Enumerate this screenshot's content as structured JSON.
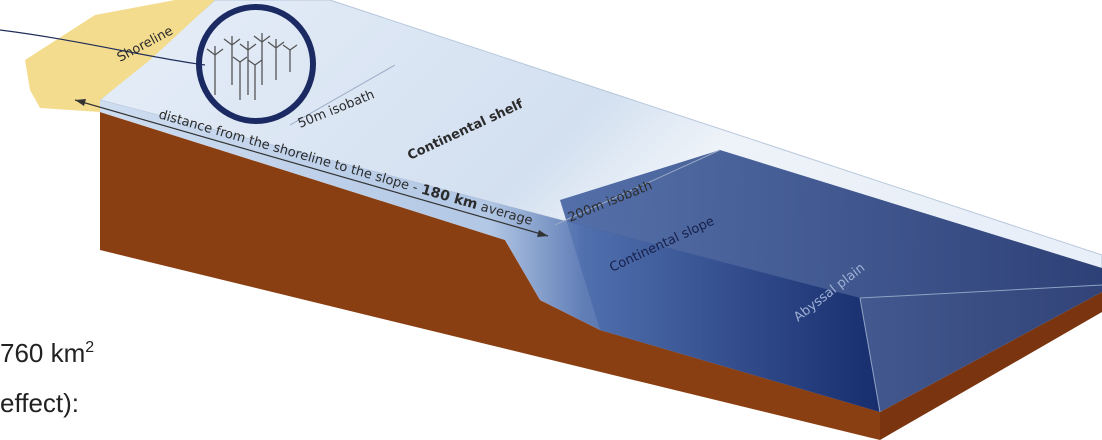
{
  "labels": {
    "shoreline": "Shoreline",
    "isobath_50": "50m isobath",
    "shelf": "Continental shelf",
    "distance": {
      "prefix": "distance from the shoreline to the slope - ",
      "value": "180 km",
      "suffix": " average"
    },
    "isobath_200": "200m isobath",
    "slope": "Continental slope",
    "plain": "Abyssal plain"
  },
  "side_text": {
    "area": {
      "text": "760 km",
      "superscript": "2"
    },
    "effect": "effect):"
  }
}
